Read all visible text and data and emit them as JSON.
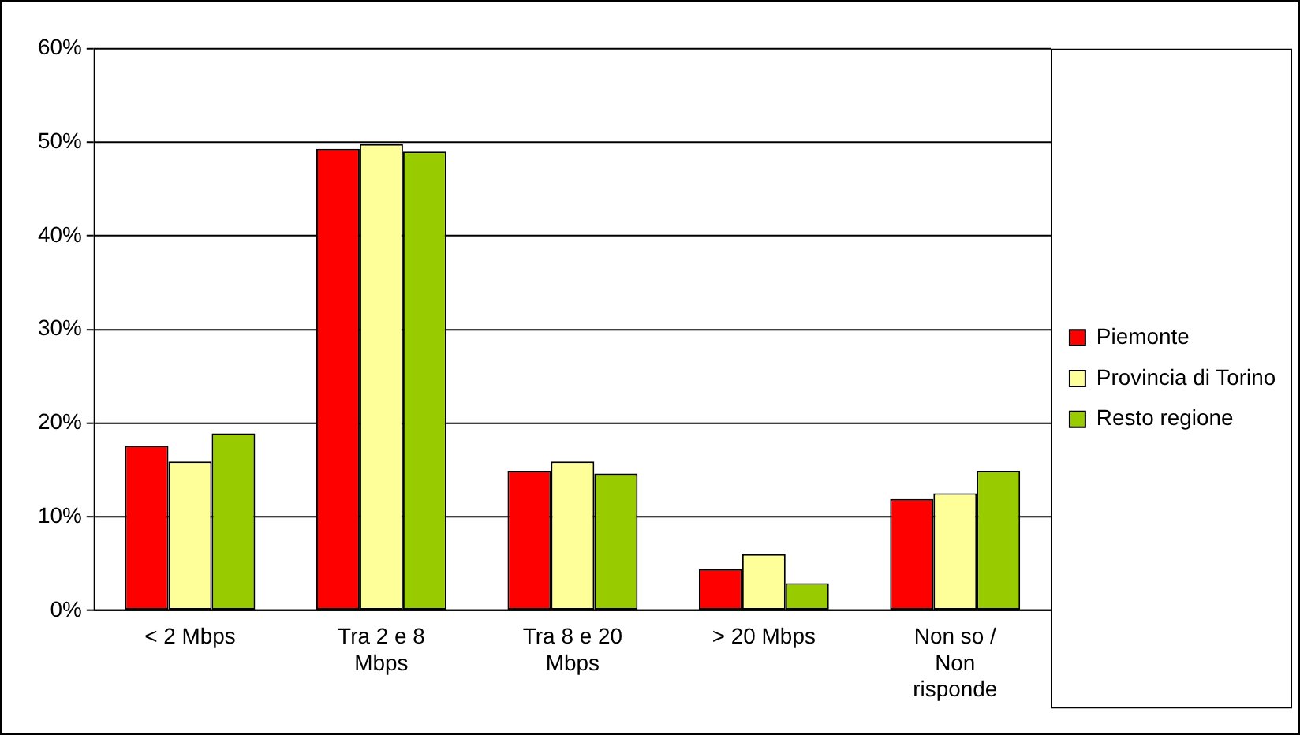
{
  "chart_data": {
    "type": "bar",
    "categories": [
      "< 2 Mbps",
      "Tra 2 e 8 Mbps",
      "Tra 8 e 20 Mbps",
      "> 20 Mbps",
      "Non so / Non risponde"
    ],
    "series": [
      {
        "name": "Piemonte",
        "color": "#ff0000",
        "values": [
          17.6,
          49.3,
          14.9,
          4.4,
          11.9
        ]
      },
      {
        "name": "Provincia di Torino",
        "color": "#ffff99",
        "values": [
          15.9,
          49.8,
          15.9,
          6.0,
          12.5
        ]
      },
      {
        "name": "Resto regione",
        "color": "#99cc00",
        "values": [
          18.9,
          49.0,
          14.6,
          2.9,
          14.9
        ]
      }
    ],
    "ylim": [
      0,
      60
    ],
    "yticks": [
      {
        "value": 0,
        "label": "0%"
      },
      {
        "value": 10,
        "label": "10%"
      },
      {
        "value": 20,
        "label": "20%"
      },
      {
        "value": 30,
        "label": "30%"
      },
      {
        "value": 40,
        "label": "40%"
      },
      {
        "value": 50,
        "label": "50%"
      },
      {
        "value": 60,
        "label": "60%"
      }
    ],
    "grid": "y",
    "legend": "right"
  }
}
